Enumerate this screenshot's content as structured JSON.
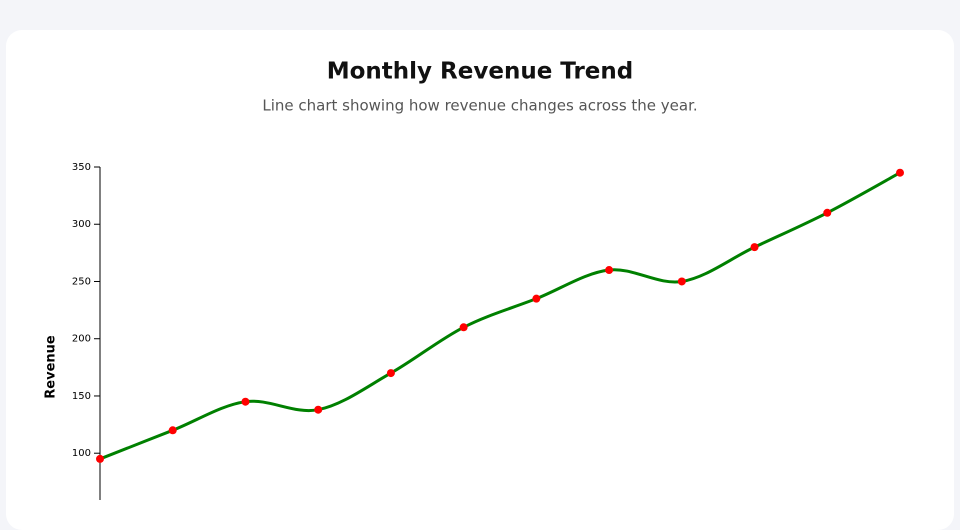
{
  "chart_data": {
    "type": "line",
    "title": "Monthly Revenue Trend",
    "subtitle": "Line chart showing how revenue changes across the year.",
    "y_label": "Revenue",
    "values": [
      95,
      120,
      145,
      138,
      170,
      210,
      235,
      260,
      250,
      280,
      310,
      345
    ],
    "color": "#008000",
    "marker_color": "#ff0000",
    "ylim": [
      60,
      350
    ],
    "yticks": [
      100,
      150,
      200,
      250,
      300,
      350
    ]
  }
}
